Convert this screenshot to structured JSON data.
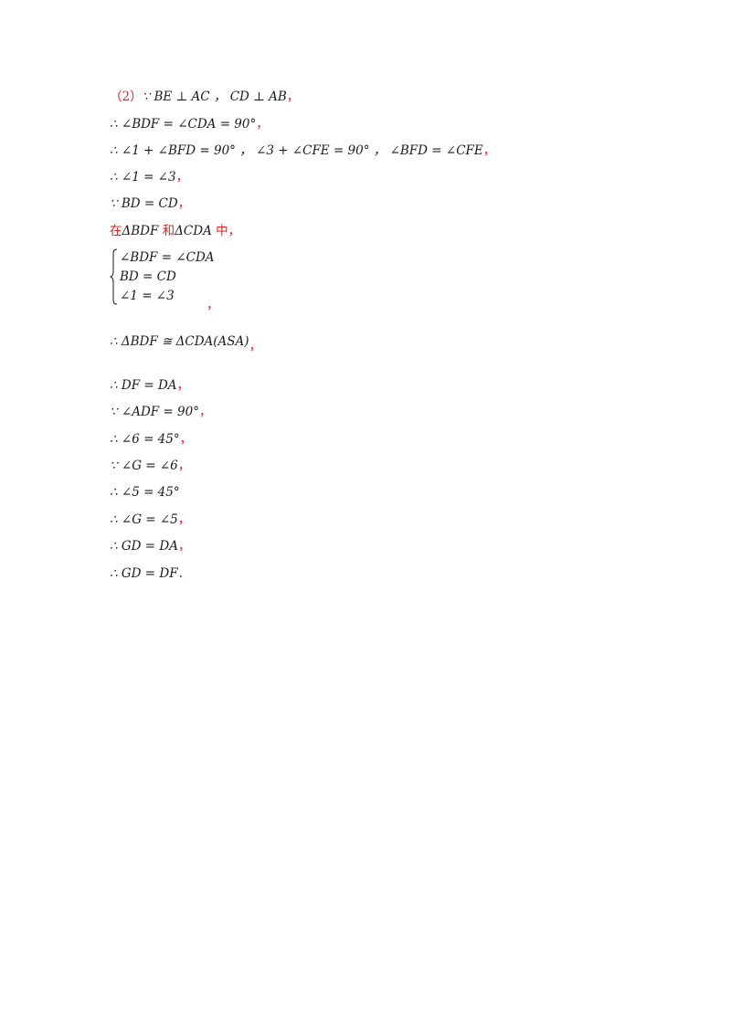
{
  "lines": [
    {
      "prefix": "（2）",
      "text": "∵ BE ⊥ AC ，  CD ⊥ AB",
      "suffix": "，"
    },
    {
      "text": "∴ ∠BDF = ∠CDA = 90°",
      "suffix": "，"
    },
    {
      "text": "∴ ∠1 + ∠BFD = 90° ，  ∠3 + ∠CFE = 90° ，  ∠BFD = ∠CFE",
      "suffix": "，"
    },
    {
      "text": "∴ ∠1 = ∠3",
      "suffix": "，"
    },
    {
      "text": "∵ BD = CD",
      "suffix": "，"
    },
    {
      "in_label": "在",
      "tri1": "ΔBDF",
      "and_label": "和",
      "tri2": "ΔCDA",
      "mid_label": "中，"
    },
    {
      "text": "∴ ΔBDF ≅ ΔCDA(ASA)",
      "suffix": "，"
    },
    {
      "text": "∴ DF = DA",
      "suffix": "，"
    },
    {
      "text": "∵ ∠ADF = 90°",
      "suffix": "，"
    },
    {
      "text": "∴ ∠6 = 45°",
      "suffix": "，"
    },
    {
      "text": "∵ ∠G = ∠6",
      "suffix": "，"
    },
    {
      "text": "∴ ∠5 = 45°",
      "suffix": ""
    },
    {
      "text": "∴ ∠G = ∠5",
      "suffix": "，"
    },
    {
      "text": "∴ GD = DA",
      "suffix": "，"
    },
    {
      "text": "∴ GD = DF",
      "suffix": "．"
    }
  ],
  "system": {
    "rows": [
      "∠BDF = ∠CDA",
      "BD = CD",
      "∠1 = ∠3"
    ],
    "trailing": "，"
  }
}
